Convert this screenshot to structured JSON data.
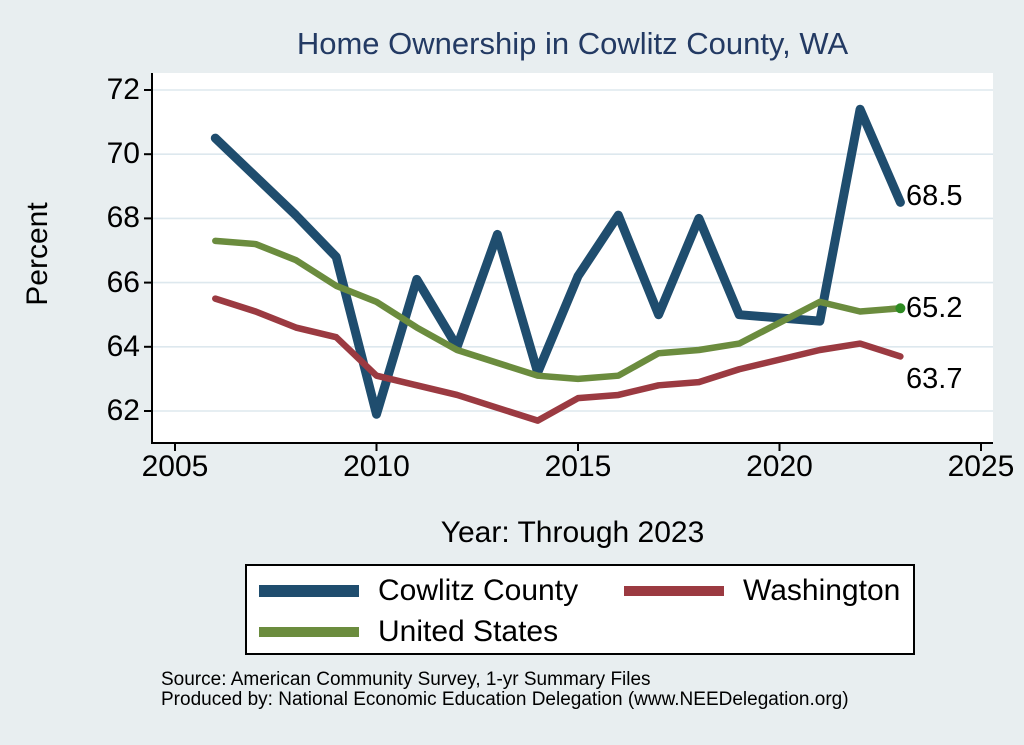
{
  "title": "Home Ownership in Cowlitz County, WA",
  "colors": {
    "background": "#e8eef0",
    "plot_background": "#ffffff",
    "gridline": "#dde8ee",
    "axis": "#000000",
    "title_text": "#233a63",
    "cowlitz_blue": "#1f4d6e",
    "washington_red": "#9b3a41",
    "us_green": "#6b8c3e",
    "end_marker_green": "#2e8b22"
  },
  "chart_data": {
    "type": "line",
    "title": "Home Ownership in Cowlitz County, WA",
    "xlabel": "Year: Through 2023",
    "ylabel": "Percent",
    "x": [
      2006,
      2007,
      2008,
      2009,
      2010,
      2011,
      2012,
      2013,
      2014,
      2015,
      2016,
      2017,
      2018,
      2019,
      2021,
      2022,
      2023
    ],
    "note": "No 2020 value is plotted; lines connect 2019 directly to 2021.",
    "series": [
      {
        "name": "Cowlitz County",
        "color": "#1f4d6e",
        "line_width": 9,
        "values": [
          70.5,
          69.3,
          68.1,
          66.8,
          61.9,
          66.1,
          64.0,
          67.5,
          63.2,
          66.2,
          68.1,
          65.0,
          68.0,
          65.0,
          64.8,
          71.4,
          68.5
        ],
        "end_label": "68.5",
        "end_marker": false
      },
      {
        "name": "Washington",
        "color": "#9b3a41",
        "line_width": 6.5,
        "values": [
          65.5,
          65.1,
          64.6,
          64.3,
          63.1,
          62.8,
          62.5,
          62.1,
          61.7,
          62.4,
          62.5,
          62.8,
          62.9,
          63.3,
          63.9,
          64.1,
          63.7
        ],
        "end_label": "63.7",
        "end_marker": false
      },
      {
        "name": "United States",
        "color": "#6b8c3e",
        "line_width": 6.5,
        "values": [
          67.3,
          67.2,
          66.7,
          65.9,
          65.4,
          64.6,
          63.9,
          63.5,
          63.1,
          63.0,
          63.1,
          63.8,
          63.9,
          64.1,
          65.4,
          65.1,
          65.2
        ],
        "end_label": "65.2",
        "end_marker": true,
        "end_marker_color": "#2e8b22"
      }
    ],
    "xticks": [
      2005,
      2010,
      2015,
      2020,
      2025
    ],
    "yticks": [
      62,
      64,
      66,
      68,
      70,
      72
    ],
    "xlim": [
      2004.4,
      2025.3
    ],
    "ylim": [
      61.0,
      72.5
    ],
    "grid": true,
    "legend_position": "bottom"
  },
  "legend": {
    "entries": [
      {
        "label": "Cowlitz County",
        "series_index": 0
      },
      {
        "label": "Washington",
        "series_index": 1
      },
      {
        "label": "United States",
        "series_index": 2
      }
    ]
  },
  "source": {
    "line1": "Source: American Community Survey, 1-yr Summary Files",
    "line2": "Produced by: National Economic Education Delegation (www.NEEDelegation.org)"
  }
}
